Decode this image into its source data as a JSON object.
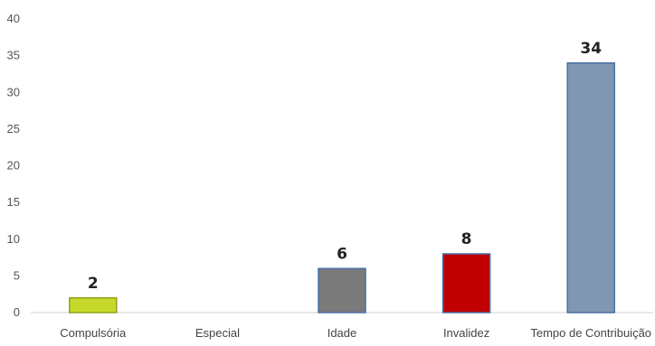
{
  "chart_data": {
    "type": "bar",
    "title": "",
    "xlabel": "",
    "ylabel": "",
    "categories": [
      "Compulsória",
      "Especial",
      "Idade",
      "Invalidez",
      "Tempo de Contribuição"
    ],
    "values": [
      2,
      0,
      6,
      8,
      34
    ],
    "data_labels": [
      "2",
      "",
      "6",
      "8",
      "34"
    ],
    "bar_colors": [
      "#c6d92b",
      "#c6d92b",
      "#7b7b7b",
      "#c00000",
      "#8097b3"
    ],
    "bar_edge_colors": [
      "#8fa31a",
      "#8fa31a",
      "#4a6fa5",
      "#4a6fa5",
      "#4a6fa5"
    ],
    "ylim": [
      0,
      40
    ],
    "yticks": [
      0,
      5,
      10,
      15,
      20,
      25,
      30,
      35,
      40
    ],
    "grid": false,
    "legend": "none"
  }
}
